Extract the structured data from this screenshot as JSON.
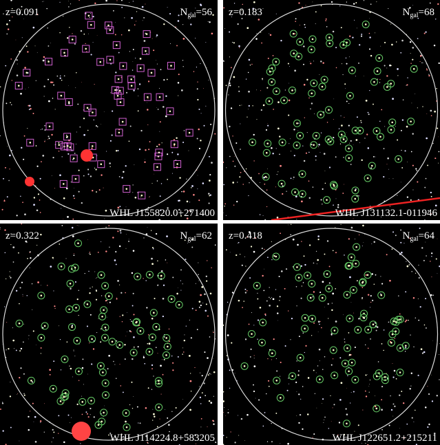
{
  "panels": [
    {
      "z": "z=0.091",
      "n_symbol": "N",
      "n_sub": "gal",
      "n_value": "=56",
      "name": "WHL J155820.0+271400"
    },
    {
      "z": "z=0.183",
      "n_symbol": "N",
      "n_sub": "gal",
      "n_value": "=68",
      "name": "WHL J131132.1-011946"
    },
    {
      "z": "z=0.322",
      "n_symbol": "N",
      "n_sub": "gal",
      "n_value": "=62",
      "name": "WHL J114224.8+583205"
    },
    {
      "z": "z=0.418",
      "n_symbol": "N",
      "n_sub": "gal",
      "n_value": "=64",
      "name": "WHL J122651.2+215211"
    }
  ]
}
